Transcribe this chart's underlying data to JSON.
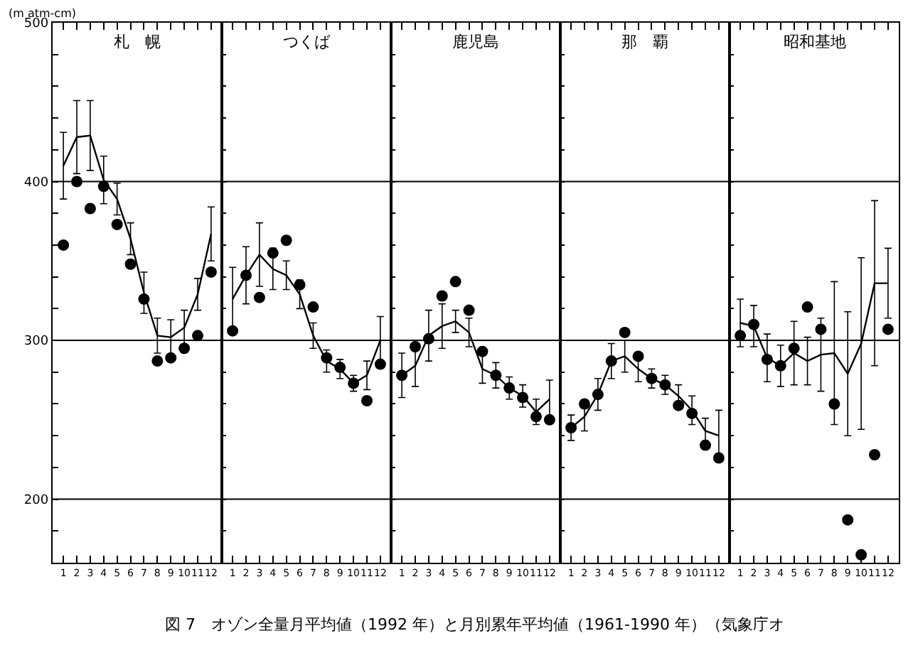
{
  "chart_data": [
    {
      "type": "line",
      "title": "札　幌",
      "ylabel": "(m atm-cm)",
      "x": [
        1,
        2,
        3,
        4,
        5,
        6,
        7,
        8,
        9,
        10,
        11,
        12
      ],
      "xlim": [
        0.2,
        12.8
      ],
      "xticks": [
        1,
        2,
        3,
        4,
        5,
        6,
        7,
        8,
        9,
        10,
        11,
        12
      ],
      "ylim": [
        160,
        500
      ],
      "yticks": [
        {
          "value": 180,
          "label": null
        },
        200,
        {
          "value": 220,
          "label": null
        },
        {
          "value": 240,
          "label": null
        },
        {
          "value": 260,
          "label": null
        },
        {
          "value": 280,
          "label": null
        },
        300,
        {
          "value": 320,
          "label": null
        },
        {
          "value": 340,
          "label": null
        },
        {
          "value": 360,
          "label": null
        },
        {
          "value": 380,
          "label": null
        },
        400,
        {
          "value": 420,
          "label": null
        },
        {
          "value": 440,
          "label": null
        },
        {
          "value": 460,
          "label": null
        },
        {
          "value": 480,
          "label": null
        },
        500
      ],
      "grid": "y",
      "annotations": [
        "図 7　オゾン全量月平均値（1992 年）と月別累年平均値（1961-1990 年）（気象庁オ"
      ],
      "series": [
        {
          "color": "#000000",
          "marker": "none",
          "values": [
            410,
            428,
            429,
            401,
            389,
            364,
            330,
            303,
            302,
            308,
            329,
            367
          ],
          "errors": [
            21,
            23,
            22,
            15,
            10,
            10,
            13,
            11,
            11,
            11,
            10,
            17
          ]
        },
        {
          "type": "scatter",
          "color": "#000000",
          "marker": "circle",
          "values": [
            360,
            400,
            383,
            397,
            373,
            348,
            326,
            287,
            289,
            295,
            303,
            343
          ]
        }
      ]
    },
    {
      "type": "line",
      "title": "つくば",
      "x": [
        1,
        2,
        3,
        4,
        5,
        6,
        7,
        8,
        9,
        10,
        11,
        12
      ],
      "xlim": [
        0.2,
        12.8
      ],
      "xticks": [
        1,
        2,
        3,
        4,
        5,
        6,
        7,
        8,
        9,
        10,
        11,
        12
      ],
      "ylim": [
        160,
        500
      ],
      "yticks": [
        {
          "value": 180,
          "label": null
        },
        200,
        {
          "value": 220,
          "label": null
        },
        {
          "value": 240,
          "label": null
        },
        {
          "value": 260,
          "label": null
        },
        {
          "value": 280,
          "label": null
        },
        300,
        {
          "value": 320,
          "label": null
        },
        {
          "value": 340,
          "label": null
        },
        {
          "value": 360,
          "label": null
        },
        {
          "value": 380,
          "label": null
        },
        400,
        {
          "value": 420,
          "label": null
        },
        {
          "value": 440,
          "label": null
        },
        {
          "value": 460,
          "label": null
        },
        {
          "value": 480,
          "label": null
        },
        500
      ],
      "grid": "y",
      "tick_labels": "x",
      "series": [
        {
          "color": "#000000",
          "marker": "none",
          "values": [
            326,
            341,
            354,
            345,
            341,
            329,
            303,
            287,
            282,
            273,
            278,
            300
          ],
          "errors": [
            20,
            18,
            20,
            13,
            9,
            9,
            8,
            7,
            6,
            5,
            9,
            15
          ]
        },
        {
          "type": "scatter",
          "color": "#000000",
          "marker": "circle",
          "values": [
            306,
            341,
            327,
            355,
            363,
            335,
            321,
            289,
            283,
            273,
            262,
            285
          ]
        }
      ]
    },
    {
      "type": "line",
      "title": "鹿児島",
      "x": [
        1,
        2,
        3,
        4,
        5,
        6,
        7,
        8,
        9,
        10,
        11,
        12
      ],
      "xlim": [
        0.2,
        12.8
      ],
      "xticks": [
        1,
        2,
        3,
        4,
        5,
        6,
        7,
        8,
        9,
        10,
        11,
        12
      ],
      "ylim": [
        160,
        500
      ],
      "yticks": [
        {
          "value": 180,
          "label": null
        },
        200,
        {
          "value": 220,
          "label": null
        },
        {
          "value": 240,
          "label": null
        },
        {
          "value": 260,
          "label": null
        },
        {
          "value": 280,
          "label": null
        },
        300,
        {
          "value": 320,
          "label": null
        },
        {
          "value": 340,
          "label": null
        },
        {
          "value": 360,
          "label": null
        },
        {
          "value": 380,
          "label": null
        },
        400,
        {
          "value": 420,
          "label": null
        },
        {
          "value": 440,
          "label": null
        },
        {
          "value": 460,
          "label": null
        },
        {
          "value": 480,
          "label": null
        },
        500
      ],
      "grid": "y",
      "tick_labels": "x",
      "series": [
        {
          "color": "#000000",
          "marker": "none",
          "values": [
            278,
            284,
            303,
            309,
            312,
            305,
            282,
            278,
            270,
            265,
            255,
            263
          ],
          "errors": [
            14,
            13,
            16,
            14,
            7,
            9,
            9,
            8,
            7,
            7,
            8,
            12
          ]
        },
        {
          "type": "scatter",
          "color": "#000000",
          "marker": "circle",
          "values": [
            278,
            296,
            301,
            328,
            337,
            319,
            293,
            278,
            270,
            264,
            252,
            250
          ]
        }
      ]
    },
    {
      "type": "line",
      "title": "那　覇",
      "x": [
        1,
        2,
        3,
        4,
        5,
        6,
        7,
        8,
        9,
        10,
        11,
        12
      ],
      "xlim": [
        0.2,
        12.8
      ],
      "xticks": [
        1,
        2,
        3,
        4,
        5,
        6,
        7,
        8,
        9,
        10,
        11,
        12
      ],
      "ylim": [
        160,
        500
      ],
      "yticks": [
        {
          "value": 180,
          "label": null
        },
        200,
        {
          "value": 220,
          "label": null
        },
        {
          "value": 240,
          "label": null
        },
        {
          "value": 260,
          "label": null
        },
        {
          "value": 280,
          "label": null
        },
        300,
        {
          "value": 320,
          "label": null
        },
        {
          "value": 340,
          "label": null
        },
        {
          "value": 360,
          "label": null
        },
        {
          "value": 380,
          "label": null
        },
        400,
        {
          "value": 420,
          "label": null
        },
        {
          "value": 440,
          "label": null
        },
        {
          "value": 460,
          "label": null
        },
        {
          "value": 480,
          "label": null
        },
        500
      ],
      "grid": "y",
      "tick_labels": "x",
      "series": [
        {
          "color": "#000000",
          "marker": "none",
          "values": [
            245,
            252,
            266,
            287,
            290,
            282,
            276,
            272,
            265,
            256,
            243,
            240
          ],
          "errors": [
            8,
            9,
            10,
            11,
            10,
            8,
            6,
            6,
            7,
            9,
            8,
            16
          ]
        },
        {
          "type": "scatter",
          "color": "#000000",
          "marker": "circle",
          "values": [
            245,
            260,
            266,
            287,
            305,
            290,
            276,
            272,
            259,
            254,
            234,
            226
          ]
        }
      ]
    },
    {
      "type": "line",
      "title": "昭和基地",
      "x": [
        1,
        2,
        3,
        4,
        5,
        6,
        7,
        8,
        9,
        10,
        11,
        12
      ],
      "xlim": [
        0.2,
        12.8
      ],
      "xticks": [
        1,
        2,
        3,
        4,
        5,
        6,
        7,
        8,
        9,
        10,
        11,
        12
      ],
      "ylim": [
        160,
        500
      ],
      "yticks": [
        {
          "value": 180,
          "label": null
        },
        200,
        {
          "value": 220,
          "label": null
        },
        {
          "value": 240,
          "label": null
        },
        {
          "value": 260,
          "label": null
        },
        {
          "value": 280,
          "label": null
        },
        300,
        {
          "value": 320,
          "label": null
        },
        {
          "value": 340,
          "label": null
        },
        {
          "value": 360,
          "label": null
        },
        {
          "value": 380,
          "label": null
        },
        400,
        {
          "value": 420,
          "label": null
        },
        {
          "value": 440,
          "label": null
        },
        {
          "value": 460,
          "label": null
        },
        {
          "value": 480,
          "label": null
        },
        500
      ],
      "grid": "y",
      "tick_labels": "x",
      "series": [
        {
          "color": "#000000",
          "marker": "none",
          "values": [
            311,
            309,
            289,
            284,
            292,
            287,
            291,
            292,
            279,
            298,
            336,
            336
          ],
          "errors": [
            15,
            13,
            15,
            13,
            20,
            15,
            23,
            45,
            39,
            54,
            52,
            22
          ]
        },
        {
          "type": "scatter",
          "color": "#000000",
          "marker": "circle",
          "values": [
            303,
            310,
            288,
            284,
            295,
            321,
            307,
            260,
            187,
            165,
            228,
            307
          ]
        }
      ]
    }
  ]
}
